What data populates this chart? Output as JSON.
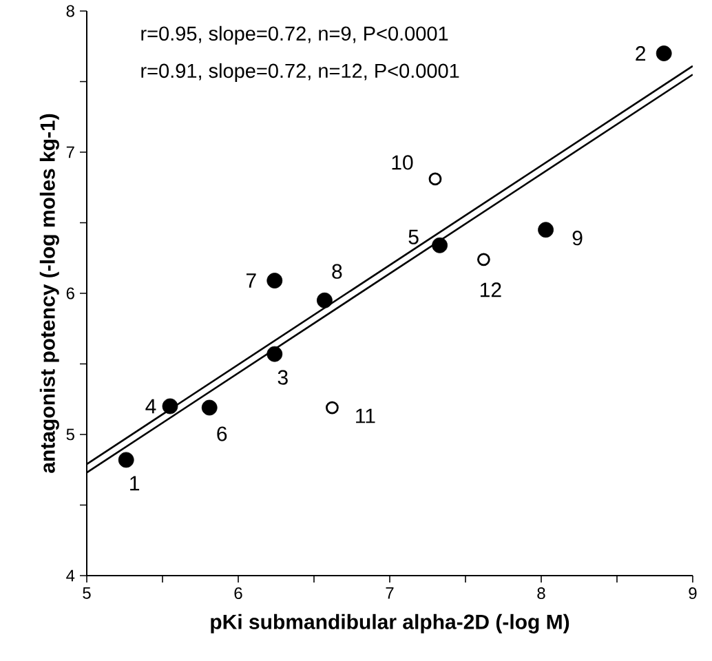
{
  "chart_data": {
    "type": "scatter",
    "xlabel": "pKi submandibular alpha-2D (-log M)",
    "ylabel": "antagonist potency (-log moles kg-1)",
    "xlim": [
      5,
      9
    ],
    "ylim": [
      4,
      8
    ],
    "xticks": [
      5,
      {
        "value": 5.5,
        "label": null
      },
      6,
      {
        "value": 6.5,
        "label": null
      },
      7,
      {
        "value": 7.5,
        "label": null
      },
      8,
      {
        "value": 8.5,
        "label": null
      },
      9
    ],
    "yticks": [
      4,
      {
        "value": 4.5,
        "label": null
      },
      5,
      {
        "value": 5.5,
        "label": null
      },
      6,
      {
        "value": 6.5,
        "label": null
      },
      7,
      {
        "value": 7.5,
        "label": null
      },
      8
    ],
    "marker": "circle",
    "series": [
      {
        "color": "#000000",
        "x": [
          5.26,
          8.81,
          6.24,
          5.55,
          7.33,
          5.81,
          6.24,
          6.57,
          8.03
        ],
        "values": [
          4.82,
          7.7,
          5.57,
          5.2,
          6.34,
          5.19,
          6.09,
          5.95,
          6.45
        ]
      },
      {
        "color": "#000000",
        "x": [
          7.3,
          6.62,
          7.62
        ],
        "values": [
          6.81,
          5.19,
          6.24
        ]
      },
      {
        "type": "line",
        "color": "#000000",
        "line_style": "solid",
        "marker": "none",
        "x": [
          5,
          9
        ],
        "values": [
          4.79,
          7.61
        ]
      },
      {
        "type": "line",
        "color": "#000000",
        "line_style": "solid",
        "marker": "none",
        "x": [
          5,
          9
        ],
        "values": [
          4.73,
          7.55
        ]
      }
    ],
    "annotations": [
      "r=0.95, slope=0.72, n=9, P<0.0001",
      "r=0.91, slope=0.72, n=12, P<0.0001",
      {
        "text": "1",
        "x": 5.26,
        "y": 4.82
      },
      {
        "text": "2",
        "x": 8.81,
        "y": 7.7
      },
      {
        "text": "3",
        "x": 6.24,
        "y": 5.57
      },
      {
        "text": "4",
        "x": 5.55,
        "y": 5.2
      },
      {
        "text": "5",
        "x": 7.33,
        "y": 6.34
      },
      {
        "text": "6",
        "x": 5.81,
        "y": 5.19
      },
      {
        "text": "7",
        "x": 6.24,
        "y": 6.09
      },
      {
        "text": "8",
        "x": 6.57,
        "y": 5.95
      },
      {
        "text": "9",
        "x": 8.03,
        "y": 6.45
      },
      {
        "text": "10",
        "x": 7.3,
        "y": 6.81
      },
      {
        "text": "11",
        "x": 6.62,
        "y": 5.19
      },
      {
        "text": "12",
        "x": 7.62,
        "y": 6.24
      }
    ]
  }
}
